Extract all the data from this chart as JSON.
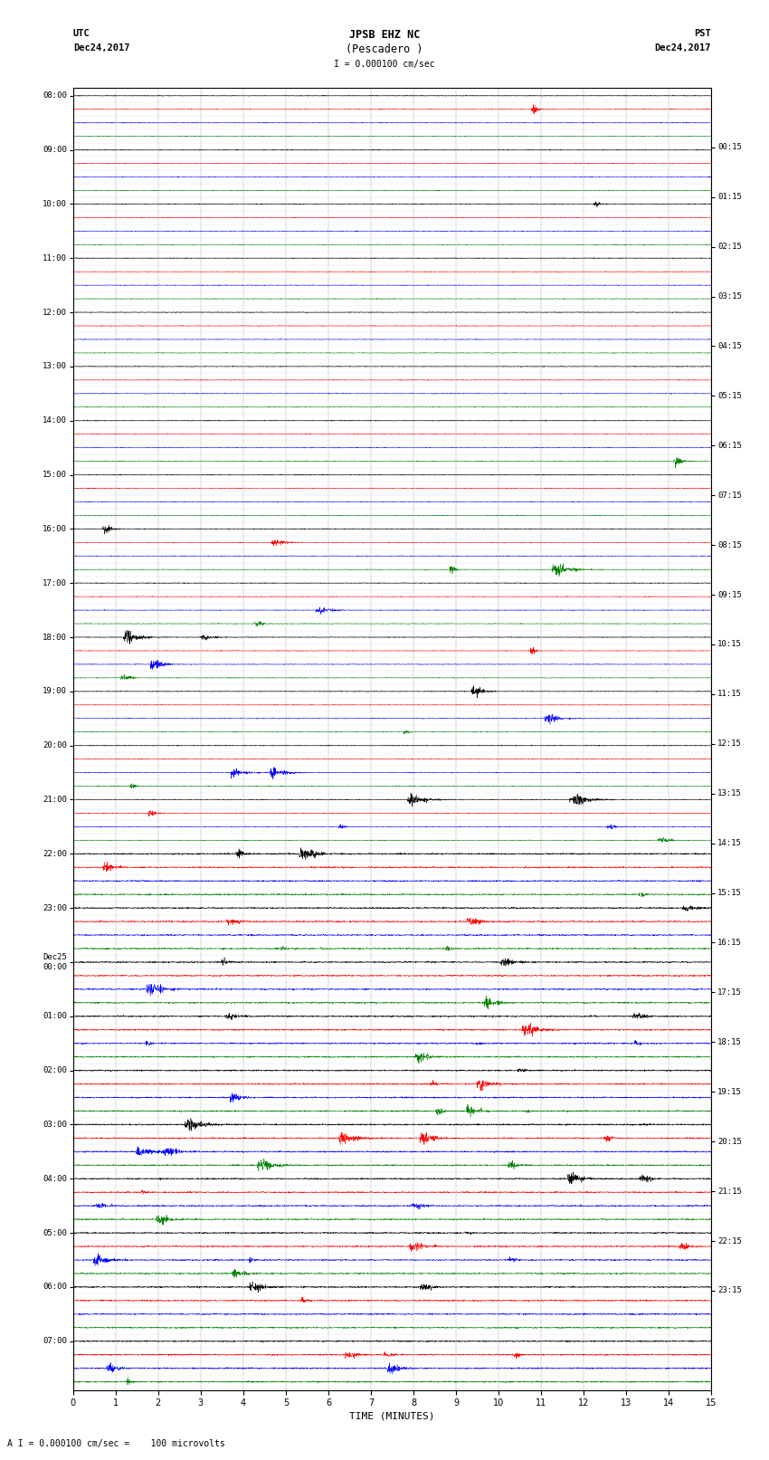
{
  "title_line1": "JPSB EHZ NC",
  "title_line2": "(Pescadero )",
  "title_scale": "I = 0.000100 cm/sec",
  "left_header_line1": "UTC",
  "left_header_line2": "Dec24,2017",
  "right_header_line1": "PST",
  "right_header_line2": "Dec24,2017",
  "xlabel": "TIME (MINUTES)",
  "footer": "A I = 0.000100 cm/sec =    100 microvolts",
  "utc_hour_labels": [
    "08:00",
    "09:00",
    "10:00",
    "11:00",
    "12:00",
    "13:00",
    "14:00",
    "15:00",
    "16:00",
    "17:00",
    "18:00",
    "19:00",
    "20:00",
    "21:00",
    "22:00",
    "23:00",
    "Dec25\n00:00",
    "01:00",
    "02:00",
    "03:00",
    "04:00",
    "05:00",
    "06:00",
    "07:00"
  ],
  "pst_hour_labels": [
    "00:15",
    "01:15",
    "02:15",
    "03:15",
    "04:15",
    "05:15",
    "06:15",
    "07:15",
    "08:15",
    "09:15",
    "10:15",
    "11:15",
    "12:15",
    "13:15",
    "14:15",
    "15:15",
    "16:15",
    "17:15",
    "18:15",
    "19:15",
    "20:15",
    "21:15",
    "22:15",
    "23:15"
  ],
  "n_hours": 24,
  "traces_per_hour": 4,
  "trace_colors": [
    "black",
    "red",
    "blue",
    "green"
  ],
  "time_duration_minutes": 15,
  "background_color": "white",
  "grid_color": "#888888",
  "noise_base": 0.012,
  "noise_high": 0.025,
  "amplitude_max": 0.42,
  "seed": 42
}
